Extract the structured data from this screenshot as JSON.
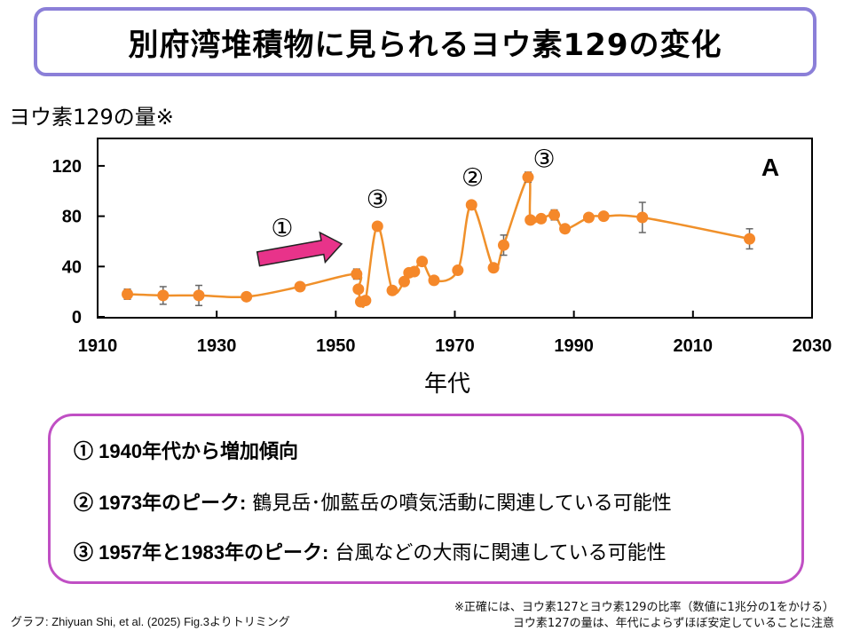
{
  "title": "別府湾堆積物に見られるヨウ素129の変化",
  "y_top_label": "ヨウ素129の量※",
  "x_axis_label": "年代",
  "notes": [
    {
      "head": "① 1940年代から増加傾向",
      "rest": ""
    },
    {
      "head": "② 1973年のピーク:",
      "rest": " 鶴見岳･伽藍岳の噴気活動に関連している可能性"
    },
    {
      "head": "③ 1957年と1983年のピーク:",
      "rest": " 台風などの大雨に関連している可能性"
    }
  ],
  "source": "グラフ: Zhiyuan Shi, et al. (2025) Fig.3よりトリミング",
  "footnote": {
    "line1": "※正確には、ヨウ素127とヨウ素129の比率（数値に1兆分の1をかける）",
    "line2": "ヨウ素127の量は、年代によらずほぼ安定していることに注意"
  },
  "chart_data": {
    "type": "line",
    "panel_label": "A",
    "xlim": [
      1910,
      2030
    ],
    "ylim": [
      0,
      130
    ],
    "x_ticks": [
      1910,
      1930,
      1950,
      1970,
      1990,
      2010,
      2030
    ],
    "y_ticks": [
      0,
      40,
      80,
      120
    ],
    "line_color": "#f0902a",
    "point_color": "#f5882a",
    "arrow_color": "#e8338a",
    "points": [
      {
        "x": 1915,
        "y": 18,
        "err": 4
      },
      {
        "x": 1921,
        "y": 17,
        "err": 7
      },
      {
        "x": 1927,
        "y": 17,
        "err": 8
      },
      {
        "x": 1935,
        "y": 16,
        "err": 3
      },
      {
        "x": 1944,
        "y": 24,
        "err": 0
      },
      {
        "x": 1953.5,
        "y": 34,
        "err": 4
      },
      {
        "x": 1953.8,
        "y": 22,
        "err": 0
      },
      {
        "x": 1954.2,
        "y": 12,
        "err": 0
      },
      {
        "x": 1955,
        "y": 13,
        "err": 0
      },
      {
        "x": 1957,
        "y": 72,
        "err": 3
      },
      {
        "x": 1959.5,
        "y": 21,
        "err": 0
      },
      {
        "x": 1961.5,
        "y": 28,
        "err": 0
      },
      {
        "x": 1962.3,
        "y": 35,
        "err": 0
      },
      {
        "x": 1963.2,
        "y": 36,
        "err": 0
      },
      {
        "x": 1964.5,
        "y": 44,
        "err": 0
      },
      {
        "x": 1966.5,
        "y": 29,
        "err": 0
      },
      {
        "x": 1970.5,
        "y": 37,
        "err": 0
      },
      {
        "x": 1972.8,
        "y": 89,
        "err": 0
      },
      {
        "x": 1976.5,
        "y": 39,
        "err": 0
      },
      {
        "x": 1978.2,
        "y": 57,
        "err": 8
      },
      {
        "x": 1982.3,
        "y": 111,
        "err": 4
      },
      {
        "x": 1982.7,
        "y": 77,
        "err": 0
      },
      {
        "x": 1984.5,
        "y": 78,
        "err": 0
      },
      {
        "x": 1986.7,
        "y": 81,
        "err": 4
      },
      {
        "x": 1988.5,
        "y": 70,
        "err": 3
      },
      {
        "x": 1992.5,
        "y": 79,
        "err": 2
      },
      {
        "x": 1995,
        "y": 80,
        "err": 0
      },
      {
        "x": 2001.5,
        "y": 79,
        "err": 12
      },
      {
        "x": 2019.5,
        "y": 62,
        "err": 8
      }
    ],
    "annotations": [
      {
        "text": "①",
        "x": 1941,
        "y": 71
      },
      {
        "text": "③",
        "x": 1957,
        "y": 94
      },
      {
        "text": "②",
        "x": 1973,
        "y": 111
      },
      {
        "text": "③",
        "x": 1985,
        "y": 126
      }
    ],
    "arrow": {
      "from": [
        1937,
        46
      ],
      "to": [
        1951,
        58
      ]
    }
  }
}
